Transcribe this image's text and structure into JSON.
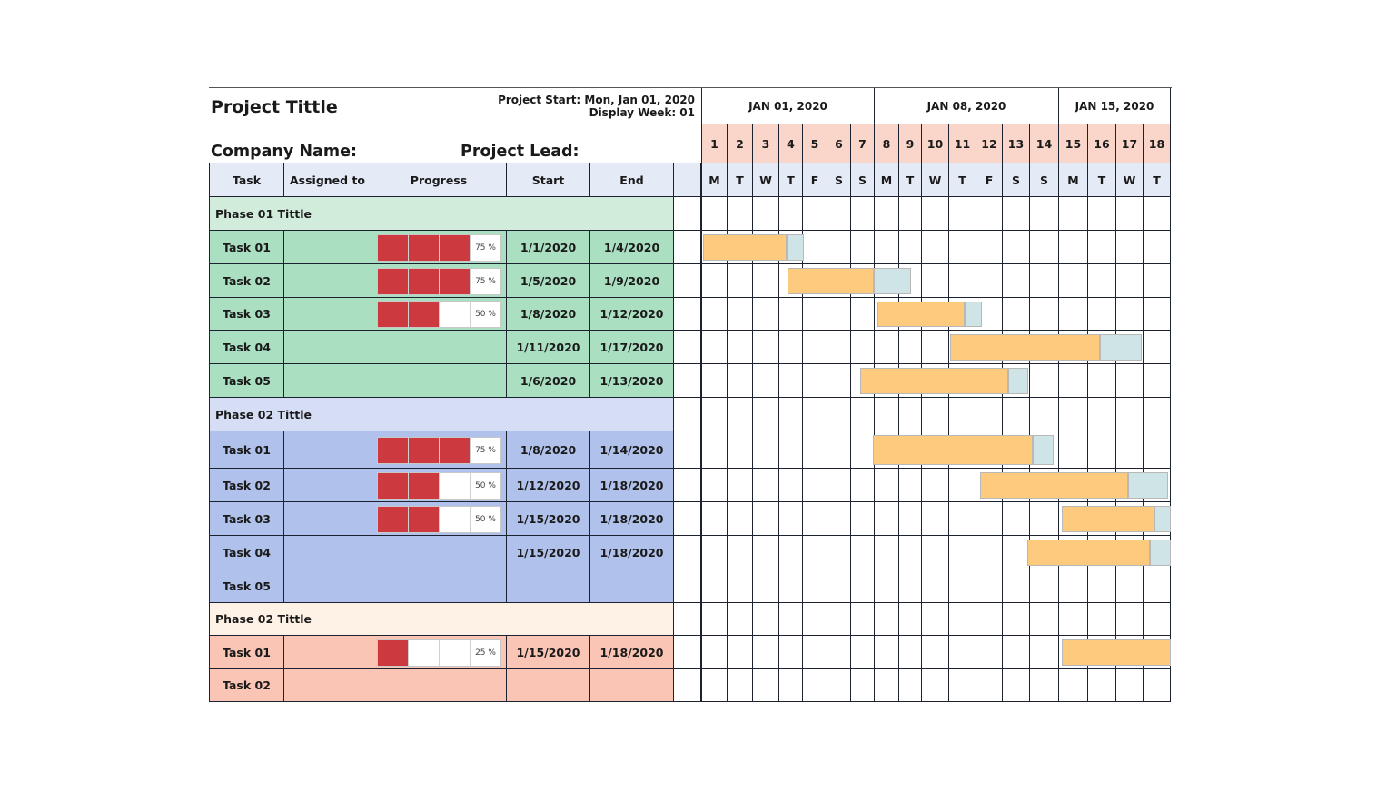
{
  "header": {
    "project_title": "Project Tittle",
    "project_start": "Project Start: Mon, Jan 01, 2020",
    "display_week": "Display Week: 01",
    "company_name": "Company Name:",
    "project_lead": "Project Lead:"
  },
  "columns": [
    "Task",
    "Assigned to",
    "Progress",
    "Start",
    "End"
  ],
  "weeks": [
    "JAN 01, 2020",
    "JAN 08, 2020",
    "JAN 15, 2020"
  ],
  "days": [
    "1",
    "2",
    "3",
    "4",
    "5",
    "6",
    "7",
    "8",
    "9",
    "10",
    "11",
    "12",
    "13",
    "14",
    "15",
    "16",
    "17",
    "18"
  ],
  "weekdays": [
    "M",
    "T",
    "W",
    "T",
    "F",
    "S",
    "S",
    "M",
    "T",
    "W",
    "T",
    "F",
    "S",
    "S",
    "M",
    "T",
    "W",
    "T"
  ],
  "colors": {
    "progress_fill": "#cc3a3f",
    "bar_done": "#fecb7e",
    "bar_remaining": "#cfe4e6",
    "day_header": "#fad5c9",
    "weekday_header": "#e5eaf7"
  },
  "phases": [
    {
      "title": "Phase 01 Tittle",
      "header_color": "#d2ecdc",
      "row_color": "#abdfc1",
      "tasks": [
        {
          "name": "Task 01",
          "assigned": "",
          "progress": 75,
          "progress_label": "75 %",
          "start": "1/1/2020",
          "end": "1/4/2020"
        },
        {
          "name": "Task 02",
          "assigned": "",
          "progress": 75,
          "progress_label": "75 %",
          "start": "1/5/2020",
          "end": "1/9/2020"
        },
        {
          "name": "Task 03",
          "assigned": "",
          "progress": 50,
          "progress_label": "50 %",
          "start": "1/8/2020",
          "end": "1/12/2020"
        },
        {
          "name": "Task 04",
          "assigned": "",
          "progress": null,
          "progress_label": "",
          "start": "1/11/2020",
          "end": "1/17/2020"
        },
        {
          "name": "Task 05",
          "assigned": "",
          "progress": null,
          "progress_label": "",
          "start": "1/6/2020",
          "end": "1/13/2020"
        }
      ]
    },
    {
      "title": "Phase 02 Tittle",
      "header_color": "#d5def5",
      "row_color": "#b0c2eb",
      "tasks": [
        {
          "name": "Task 01",
          "assigned": "",
          "progress": 75,
          "progress_label": "75 %",
          "start": "1/8/2020",
          "end": "1/14/2020"
        },
        {
          "name": "Task 02",
          "assigned": "",
          "progress": 50,
          "progress_label": "50 %",
          "start": "1/12/2020",
          "end": "1/18/2020"
        },
        {
          "name": "Task 03",
          "assigned": "",
          "progress": 50,
          "progress_label": "50 %",
          "start": "1/15/2020",
          "end": "1/18/2020"
        },
        {
          "name": "Task 04",
          "assigned": "",
          "progress": null,
          "progress_label": "",
          "start": "1/15/2020",
          "end": "1/18/2020"
        },
        {
          "name": "Task 05",
          "assigned": "",
          "progress": null,
          "progress_label": "",
          "start": "",
          "end": ""
        }
      ]
    },
    {
      "title": "Phase 02 Tittle",
      "header_color": "#fef1e5",
      "row_color": "#fbc5b5",
      "tasks": [
        {
          "name": "Task 01",
          "assigned": "",
          "progress": 25,
          "progress_label": "25 %",
          "start": "1/15/2020",
          "end": "1/18/2020"
        },
        {
          "name": "Task 02",
          "assigned": "",
          "progress": null,
          "progress_label": "",
          "start": "",
          "end": ""
        }
      ]
    }
  ]
}
